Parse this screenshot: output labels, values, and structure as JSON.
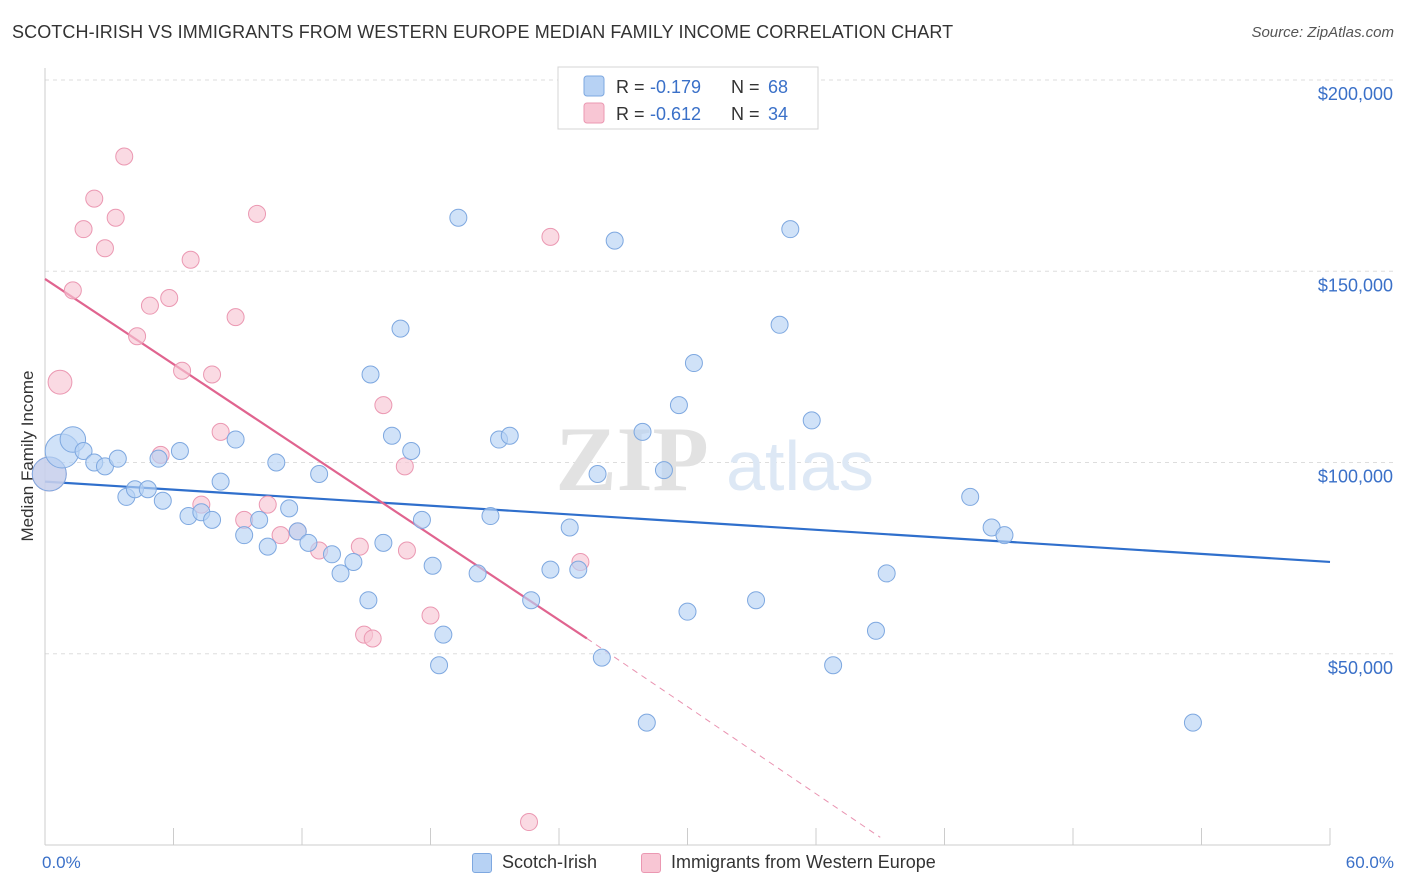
{
  "title": "SCOTCH-IRISH VS IMMIGRANTS FROM WESTERN EUROPE MEDIAN FAMILY INCOME CORRELATION CHART",
  "source": "Source: ZipAtlas.com",
  "watermark": {
    "zip": "ZIP",
    "atlas": "atlas"
  },
  "colors": {
    "blue_fill": "#b7d2f4",
    "blue_stroke": "#7ea8e0",
    "blue_line": "#2f6fcc",
    "pink_fill": "#f8c6d4",
    "pink_stroke": "#eb98b2",
    "pink_line": "#e0648f",
    "axis_text": "#3a70c8",
    "grid": "#dddddd"
  },
  "legend": {
    "rows": [
      {
        "r_label": "R =",
        "r_value": "-0.179",
        "n_label": "N =",
        "n_value": "68"
      },
      {
        "r_label": "R =",
        "r_value": "-0.612",
        "n_label": "N =",
        "n_value": "34"
      }
    ]
  },
  "chart_data": {
    "type": "scatter",
    "title": "SCOTCH-IRISH VS IMMIGRANTS FROM WESTERN EUROPE MEDIAN FAMILY INCOME CORRELATION CHART",
    "xlabel": "",
    "ylabel": "Median Family Income",
    "x_unit": "percent",
    "xlim": [
      0,
      60
    ],
    "ylim": [
      0,
      200000
    ],
    "x_tick_labels": [
      "0.0%",
      "60.0%"
    ],
    "y_ticks": [
      50000,
      100000,
      150000,
      200000
    ],
    "y_tick_labels": [
      "$50,000",
      "$100,000",
      "$150,000",
      "$200,000"
    ],
    "grid": true,
    "legend_position": "top-center",
    "series": [
      {
        "name": "Scotch-Irish",
        "color": "#b7d2f4",
        "r": -0.179,
        "n": 68,
        "trend": {
          "x": [
            0,
            60
          ],
          "y": [
            95000,
            74000
          ]
        },
        "points": [
          {
            "x": 0.2,
            "y": 97000,
            "s": 2
          },
          {
            "x": 0.8,
            "y": 103000,
            "s": 2
          },
          {
            "x": 1.3,
            "y": 106000,
            "s": 1.5
          },
          {
            "x": 1.8,
            "y": 103000,
            "s": 1
          },
          {
            "x": 2.3,
            "y": 100000,
            "s": 1
          },
          {
            "x": 2.8,
            "y": 99000,
            "s": 1
          },
          {
            "x": 3.4,
            "y": 101000,
            "s": 1
          },
          {
            "x": 3.8,
            "y": 91000,
            "s": 1
          },
          {
            "x": 4.2,
            "y": 93000,
            "s": 1
          },
          {
            "x": 4.8,
            "y": 93000,
            "s": 1
          },
          {
            "x": 5.5,
            "y": 90000,
            "s": 1
          },
          {
            "x": 5.3,
            "y": 101000,
            "s": 1
          },
          {
            "x": 6.3,
            "y": 103000,
            "s": 1
          },
          {
            "x": 6.7,
            "y": 86000,
            "s": 1
          },
          {
            "x": 7.3,
            "y": 87000,
            "s": 1
          },
          {
            "x": 7.8,
            "y": 85000,
            "s": 1
          },
          {
            "x": 8.2,
            "y": 95000,
            "s": 1
          },
          {
            "x": 8.9,
            "y": 106000,
            "s": 1
          },
          {
            "x": 9.3,
            "y": 81000,
            "s": 1
          },
          {
            "x": 10.0,
            "y": 85000,
            "s": 1
          },
          {
            "x": 10.4,
            "y": 78000,
            "s": 1
          },
          {
            "x": 10.8,
            "y": 100000,
            "s": 1
          },
          {
            "x": 11.4,
            "y": 88000,
            "s": 1
          },
          {
            "x": 11.8,
            "y": 82000,
            "s": 1
          },
          {
            "x": 12.3,
            "y": 79000,
            "s": 1
          },
          {
            "x": 12.8,
            "y": 97000,
            "s": 1
          },
          {
            "x": 13.4,
            "y": 76000,
            "s": 1
          },
          {
            "x": 13.8,
            "y": 71000,
            "s": 1
          },
          {
            "x": 14.4,
            "y": 74000,
            "s": 1
          },
          {
            "x": 15.1,
            "y": 64000,
            "s": 1
          },
          {
            "x": 15.2,
            "y": 123000,
            "s": 1
          },
          {
            "x": 15.8,
            "y": 79000,
            "s": 1
          },
          {
            "x": 16.2,
            "y": 107000,
            "s": 1
          },
          {
            "x": 16.6,
            "y": 135000,
            "s": 1
          },
          {
            "x": 17.1,
            "y": 103000,
            "s": 1
          },
          {
            "x": 17.6,
            "y": 85000,
            "s": 1
          },
          {
            "x": 18.1,
            "y": 73000,
            "s": 1
          },
          {
            "x": 18.6,
            "y": 55000,
            "s": 1
          },
          {
            "x": 18.4,
            "y": 47000,
            "s": 1
          },
          {
            "x": 19.3,
            "y": 164000,
            "s": 1
          },
          {
            "x": 20.2,
            "y": 71000,
            "s": 1
          },
          {
            "x": 20.8,
            "y": 86000,
            "s": 1
          },
          {
            "x": 21.2,
            "y": 106000,
            "s": 1
          },
          {
            "x": 21.7,
            "y": 107000,
            "s": 1
          },
          {
            "x": 22.7,
            "y": 64000,
            "s": 1
          },
          {
            "x": 23.6,
            "y": 72000,
            "s": 1
          },
          {
            "x": 24.5,
            "y": 83000,
            "s": 1
          },
          {
            "x": 24.9,
            "y": 72000,
            "s": 1
          },
          {
            "x": 25.8,
            "y": 97000,
            "s": 1
          },
          {
            "x": 26.0,
            "y": 49000,
            "s": 1
          },
          {
            "x": 26.6,
            "y": 158000,
            "s": 1
          },
          {
            "x": 27.9,
            "y": 108000,
            "s": 1
          },
          {
            "x": 28.1,
            "y": 32000,
            "s": 1
          },
          {
            "x": 28.9,
            "y": 98000,
            "s": 1
          },
          {
            "x": 29.6,
            "y": 115000,
            "s": 1
          },
          {
            "x": 30.0,
            "y": 61000,
            "s": 1
          },
          {
            "x": 30.3,
            "y": 126000,
            "s": 1
          },
          {
            "x": 33.2,
            "y": 64000,
            "s": 1
          },
          {
            "x": 34.3,
            "y": 136000,
            "s": 1
          },
          {
            "x": 34.8,
            "y": 161000,
            "s": 1
          },
          {
            "x": 35.8,
            "y": 111000,
            "s": 1
          },
          {
            "x": 36.8,
            "y": 47000,
            "s": 1
          },
          {
            "x": 38.8,
            "y": 56000,
            "s": 1
          },
          {
            "x": 39.3,
            "y": 71000,
            "s": 1
          },
          {
            "x": 43.2,
            "y": 91000,
            "s": 1
          },
          {
            "x": 44.2,
            "y": 83000,
            "s": 1
          },
          {
            "x": 44.8,
            "y": 81000,
            "s": 1
          },
          {
            "x": 53.6,
            "y": 32000,
            "s": 1
          }
        ]
      },
      {
        "name": "Immigrants from Western Europe",
        "color": "#f8c6d4",
        "r": -0.612,
        "n": 34,
        "trend": {
          "x": [
            0,
            25.3
          ],
          "y": [
            148000,
            54000
          ]
        },
        "trend_extension": {
          "x": [
            25.3,
            39
          ],
          "y": [
            54000,
            2000
          ]
        },
        "points": [
          {
            "x": 0.2,
            "y": 97000,
            "s": 2
          },
          {
            "x": 0.7,
            "y": 121000,
            "s": 1.4
          },
          {
            "x": 1.3,
            "y": 145000,
            "s": 1
          },
          {
            "x": 1.8,
            "y": 161000,
            "s": 1
          },
          {
            "x": 2.3,
            "y": 169000,
            "s": 1
          },
          {
            "x": 2.8,
            "y": 156000,
            "s": 1
          },
          {
            "x": 3.3,
            "y": 164000,
            "s": 1
          },
          {
            "x": 3.7,
            "y": 180000,
            "s": 1
          },
          {
            "x": 4.3,
            "y": 133000,
            "s": 1
          },
          {
            "x": 4.9,
            "y": 141000,
            "s": 1
          },
          {
            "x": 5.4,
            "y": 102000,
            "s": 1
          },
          {
            "x": 5.8,
            "y": 143000,
            "s": 1
          },
          {
            "x": 6.4,
            "y": 124000,
            "s": 1
          },
          {
            "x": 6.8,
            "y": 153000,
            "s": 1
          },
          {
            "x": 7.3,
            "y": 89000,
            "s": 1
          },
          {
            "x": 7.8,
            "y": 123000,
            "s": 1
          },
          {
            "x": 8.2,
            "y": 108000,
            "s": 1
          },
          {
            "x": 8.9,
            "y": 138000,
            "s": 1
          },
          {
            "x": 9.3,
            "y": 85000,
            "s": 1
          },
          {
            "x": 9.9,
            "y": 165000,
            "s": 1
          },
          {
            "x": 10.4,
            "y": 89000,
            "s": 1
          },
          {
            "x": 11.0,
            "y": 81000,
            "s": 1
          },
          {
            "x": 11.8,
            "y": 82000,
            "s": 1
          },
          {
            "x": 12.8,
            "y": 77000,
            "s": 1
          },
          {
            "x": 14.7,
            "y": 78000,
            "s": 1
          },
          {
            "x": 14.9,
            "y": 55000,
            "s": 1
          },
          {
            "x": 15.3,
            "y": 54000,
            "s": 1
          },
          {
            "x": 15.8,
            "y": 115000,
            "s": 1
          },
          {
            "x": 16.8,
            "y": 99000,
            "s": 1
          },
          {
            "x": 16.9,
            "y": 77000,
            "s": 1
          },
          {
            "x": 18.0,
            "y": 60000,
            "s": 1
          },
          {
            "x": 22.6,
            "y": 6000,
            "s": 1
          },
          {
            "x": 23.6,
            "y": 159000,
            "s": 1
          },
          {
            "x": 25.0,
            "y": 74000,
            "s": 1
          }
        ]
      }
    ]
  }
}
